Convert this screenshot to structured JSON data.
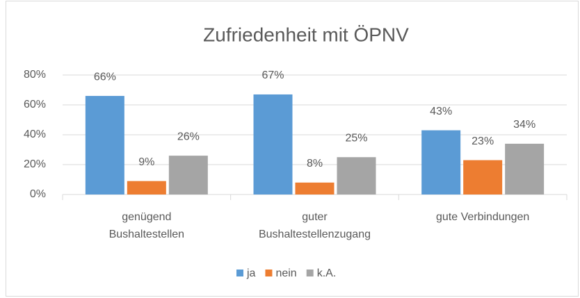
{
  "chart_data": {
    "type": "bar",
    "title": "Zufriedenheit mit ÖPNV",
    "categories": [
      "genügend\nBushaltestellen",
      "guter\nBushaltestellenzugang",
      "gute Verbindungen"
    ],
    "series": [
      {
        "name": "ja",
        "color": "#5b9bd5",
        "values": [
          66,
          67,
          43
        ],
        "value_labels": [
          "66%",
          "67%",
          "43%"
        ]
      },
      {
        "name": "nein",
        "color": "#ed7d31",
        "values": [
          9,
          8,
          23
        ],
        "value_labels": [
          "9%",
          "8%",
          "23%"
        ]
      },
      {
        "name": "k.A.",
        "color": "#a5a5a5",
        "values": [
          26,
          25,
          34
        ],
        "value_labels": [
          "26%",
          "25%",
          "34%"
        ]
      }
    ],
    "ylim": [
      0,
      80
    ],
    "yticks": [
      {
        "value": 0,
        "label": "0%"
      },
      {
        "value": 20,
        "label": "20%"
      },
      {
        "value": 40,
        "label": "40%"
      },
      {
        "value": 60,
        "label": "60%"
      },
      {
        "value": 80,
        "label": "80%"
      }
    ],
    "grid": true,
    "legend": "bottom"
  }
}
